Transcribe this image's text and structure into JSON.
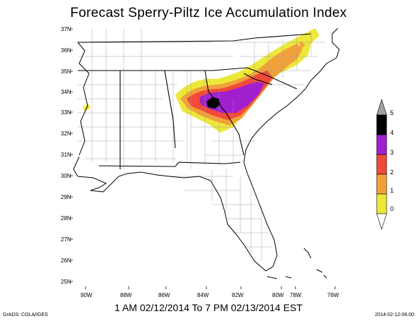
{
  "title": "Forecast Sperry-Piltz Ice Accumulation Index",
  "valid_period": "1 AM 02/12/2014 To 7 PM 02/13/2014 EST",
  "credit": "GrADS: COLA/IGES",
  "run_stamp": "2014-02-12-06:00",
  "latitude_labels": [
    "37N",
    "36N",
    "35N",
    "34N",
    "33N",
    "32N",
    "31N",
    "30N",
    "29N",
    "28N",
    "27N",
    "26N",
    "25N"
  ],
  "longitude_labels": [
    "90W",
    "88W",
    "86W",
    "84W",
    "82W",
    "80W",
    "78W",
    "76W"
  ],
  "colorbar": {
    "labels": [
      "0",
      "1",
      "2",
      "3",
      "4",
      "5"
    ],
    "colors": {
      "level0": "#ece83a",
      "level1": "#f2a13a",
      "level2": "#f04a3a",
      "level3": "#a020d0",
      "level4": "#000000",
      "level5": "#a0a0a0"
    }
  }
}
